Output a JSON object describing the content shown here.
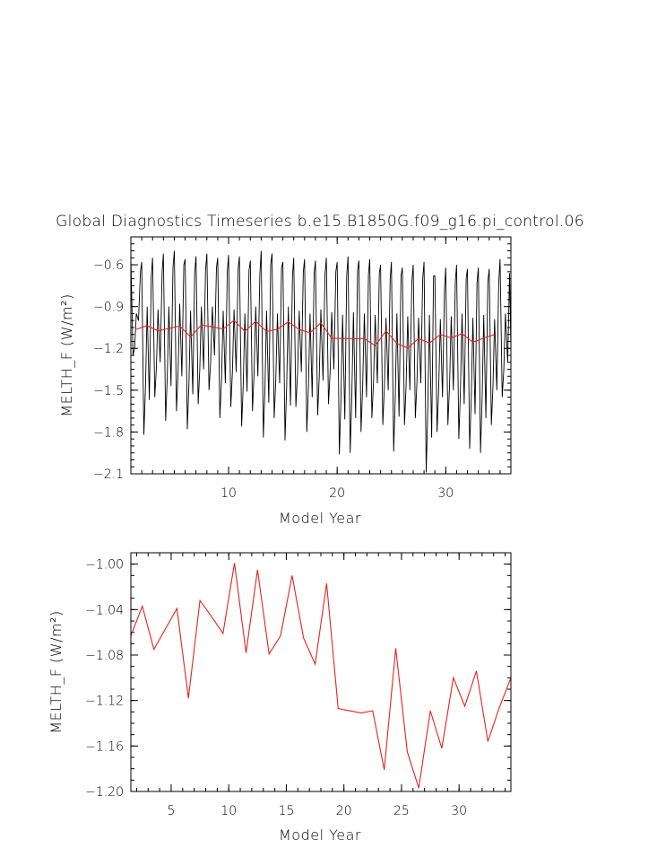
{
  "title": "Global Diagnostics Timeseries b.e15.B1850G.f09_g16.pi_control.06",
  "colors": {
    "monthly": "#000000",
    "annual": "#e8231c"
  },
  "chart_data": [
    {
      "type": "line",
      "xlabel": "Model Year",
      "ylabel": "MELTH_F (W/m²)",
      "xlim": [
        1,
        36
      ],
      "ylim": [
        -2.1,
        -0.4
      ],
      "xticks": [
        10,
        20,
        30
      ],
      "yticks": [
        -2.1,
        -1.8,
        -1.5,
        -1.2,
        -0.9,
        -0.6
      ],
      "ytick_labels": [
        "−2.1",
        "−1.8",
        "−1.5",
        "−1.2",
        "−0.9",
        "−0.6"
      ],
      "series": [
        {
          "style": "monthly",
          "cycle_minima": [
            -1.25,
            -1.82,
            -1.55,
            -1.72,
            -1.65,
            -1.78,
            -1.6,
            -1.5,
            -1.7,
            -1.62,
            -1.76,
            -1.65,
            -1.84,
            -1.7,
            -1.86,
            -1.62,
            -1.8,
            -1.68,
            -1.6,
            -1.96,
            -1.95,
            -1.8,
            -1.7,
            -1.75,
            -1.94,
            -1.75,
            -1.7,
            -2.09,
            -1.8,
            -1.75,
            -1.85,
            -1.92,
            -1.95,
            -1.75,
            -1.55
          ],
          "cycle_maxima": [
            -0.55,
            -0.58,
            -0.55,
            -0.52,
            -0.5,
            -0.56,
            -0.54,
            -0.52,
            -0.55,
            -0.53,
            -0.54,
            -0.57,
            -0.5,
            -0.52,
            -0.58,
            -0.55,
            -0.56,
            -0.57,
            -0.55,
            -0.58,
            -0.54,
            -0.57,
            -0.56,
            -0.6,
            -0.58,
            -0.62,
            -0.6,
            -0.58,
            -0.68,
            -0.62,
            -0.6,
            -0.63,
            -0.62,
            -0.63,
            -0.56
          ],
          "secondary_maxima": [
            -0.95,
            -0.9,
            -0.92,
            -0.9,
            -0.88,
            -0.93,
            -0.9,
            -0.9,
            -0.93,
            -0.92,
            -0.95,
            -0.9,
            -0.93,
            -0.95,
            -0.9,
            -0.93,
            -0.95,
            -0.92,
            -0.94,
            -0.96,
            -0.94,
            -0.95,
            -0.96,
            -0.98,
            -0.95,
            -0.97,
            -0.98,
            -0.96,
            -0.99,
            -0.97,
            -0.95,
            -0.98,
            -0.96,
            -0.99,
            -0.95
          ]
        },
        {
          "style": "annual",
          "x": [
            1.5,
            2.5,
            3.5,
            4.5,
            5.5,
            6.5,
            7.5,
            8.5,
            9.5,
            10.5,
            11.5,
            12.5,
            13.5,
            14.5,
            15.5,
            16.5,
            17.5,
            18.5,
            19.5,
            20.5,
            21.5,
            22.5,
            23.5,
            24.5,
            25.5,
            26.5,
            27.5,
            28.5,
            29.5,
            30.5,
            31.5,
            32.5,
            33.5,
            34.5
          ],
          "y": [
            -1.063,
            -1.037,
            -1.075,
            -1.057,
            -1.039,
            -1.118,
            -1.032,
            -1.046,
            -1.061,
            -0.999,
            -1.078,
            -1.005,
            -1.079,
            -1.063,
            -1.01,
            -1.065,
            -1.088,
            -1.017,
            -1.127,
            -1.129,
            -1.131,
            -1.129,
            -1.181,
            -1.074,
            -1.165,
            -1.197,
            -1.129,
            -1.162,
            -1.1,
            -1.125,
            -1.094,
            -1.156,
            -1.126,
            -1.1
          ]
        }
      ]
    },
    {
      "type": "line",
      "xlabel": "Model Year",
      "ylabel": "MELTH_F (W/m²)",
      "xlim": [
        1.5,
        34.5
      ],
      "ylim": [
        -1.2,
        -0.99
      ],
      "xticks": [
        5,
        10,
        15,
        20,
        25,
        30
      ],
      "yticks": [
        -1.2,
        -1.16,
        -1.12,
        -1.08,
        -1.04,
        -1.0
      ],
      "ytick_labels": [
        "−1.20",
        "−1.16",
        "−1.12",
        "−1.08",
        "−1.04",
        "−1.00"
      ],
      "series": [
        {
          "style": "annual",
          "x": [
            1.5,
            2.5,
            3.5,
            4.5,
            5.5,
            6.5,
            7.5,
            8.5,
            9.5,
            10.5,
            11.5,
            12.5,
            13.5,
            14.5,
            15.5,
            16.5,
            17.5,
            18.5,
            19.5,
            20.5,
            21.5,
            22.5,
            23.5,
            24.5,
            25.5,
            26.5,
            27.5,
            28.5,
            29.5,
            30.5,
            31.5,
            32.5,
            33.5,
            34.5
          ],
          "y": [
            -1.063,
            -1.037,
            -1.075,
            -1.057,
            -1.039,
            -1.118,
            -1.032,
            -1.046,
            -1.061,
            -0.999,
            -1.078,
            -1.005,
            -1.079,
            -1.063,
            -1.01,
            -1.065,
            -1.088,
            -1.017,
            -1.127,
            -1.129,
            -1.131,
            -1.129,
            -1.181,
            -1.074,
            -1.165,
            -1.197,
            -1.129,
            -1.162,
            -1.1,
            -1.125,
            -1.094,
            -1.156,
            -1.126,
            -1.1
          ]
        }
      ]
    }
  ]
}
